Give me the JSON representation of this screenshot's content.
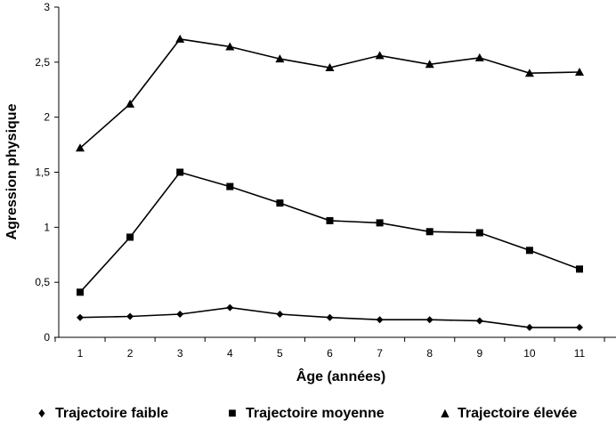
{
  "chart_data": {
    "type": "line",
    "title": "",
    "xlabel": "Âge (années)",
    "ylabel": "Agression physique",
    "x": [
      1,
      2,
      3,
      4,
      5,
      6,
      7,
      8,
      9,
      10,
      11
    ],
    "x_tick_labels": [
      "1",
      "2",
      "3",
      "4",
      "5",
      "6",
      "7",
      "8",
      "9",
      "10",
      "11"
    ],
    "y_tick_labels": [
      "0",
      "0,5",
      "1",
      "1,5",
      "2",
      "2,5",
      "3"
    ],
    "ylim": [
      0,
      3
    ],
    "grid": false,
    "legend_position": "bottom",
    "series": [
      {
        "name": "Trajectoire faible",
        "marker": "diamond",
        "marker_glyph": "♦",
        "values": [
          0.18,
          0.19,
          0.21,
          0.27,
          0.21,
          0.18,
          0.16,
          0.16,
          0.15,
          0.09,
          0.09
        ]
      },
      {
        "name": "Trajectoire moyenne",
        "marker": "square",
        "marker_glyph": "■",
        "values": [
          0.41,
          0.91,
          1.5,
          1.37,
          1.22,
          1.06,
          1.04,
          0.96,
          0.95,
          0.79,
          0.62
        ]
      },
      {
        "name": "Trajectoire élevée",
        "marker": "triangle",
        "marker_glyph": "▲",
        "values": [
          1.72,
          2.12,
          2.71,
          2.64,
          2.53,
          2.45,
          2.56,
          2.48,
          2.54,
          2.4,
          2.41
        ]
      }
    ],
    "line_color": "#000000"
  }
}
